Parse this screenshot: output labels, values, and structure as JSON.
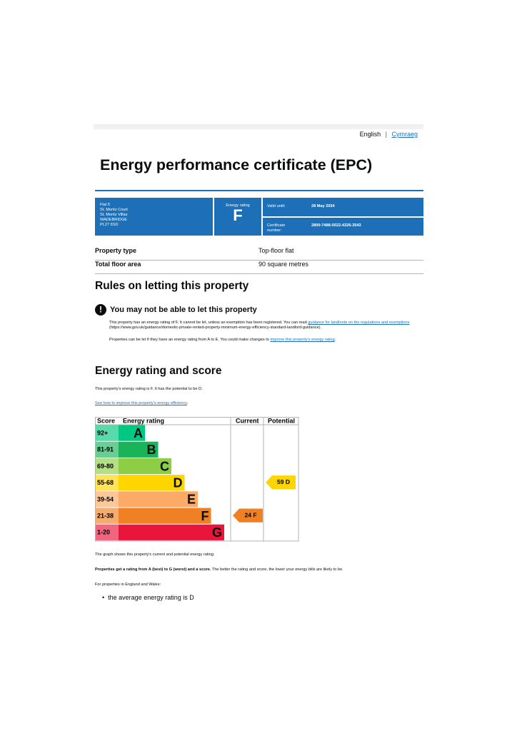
{
  "header": {
    "languages": [
      "English",
      "Cymraeg"
    ],
    "title": "Energy performance certificate (EPC)"
  },
  "summary": {
    "address": [
      "Flat 5",
      "St. Moritz Court",
      "St. Moritz Villas",
      "WADEBRIDGE",
      "PL27 6SD"
    ],
    "rating_label": "Energy rating",
    "rating": "F",
    "valid_until_label": "Valid until:",
    "valid_until": "28 May 2034",
    "certificate_label": "Certificate number:",
    "certificate_number": "2800-7488-0522-4326-3543"
  },
  "property": {
    "rows": [
      [
        "Property type",
        "Top-floor flat"
      ],
      [
        "Total floor area",
        "90 square metres"
      ]
    ]
  },
  "rules": {
    "heading": "Rules on letting this property",
    "warning": "You may not be able to let this property",
    "paragraph1": {
      "text": "This property has an energy rating of F. It cannot be let, unless an exemption has been registered. You can read ",
      "link": "guidance for landlords on the regulations and exemptions",
      "after": " (https://www.gov.uk/guidance/domestic-private-rented-property-minimum-energy-efficiency-standard-landlord-guidance)."
    },
    "paragraph2": {
      "text": "Properties can be let if they have an energy rating from A to E. You could make changes to ",
      "link": "improve this property's energy rating",
      "after": "."
    }
  },
  "rating": {
    "heading": "Energy rating and score",
    "intro": "This property's energy rating is F. It has the potential to be D.",
    "link": "See how to improve this property's energy efficiency",
    "link_after": ".",
    "chart": {
      "headers": [
        "Score",
        "Energy rating",
        "Current",
        "Potential"
      ],
      "bands": [
        {
          "score": "92+",
          "letter": "A",
          "color": "#00c781"
        },
        {
          "score": "81-91",
          "letter": "B",
          "color": "#19b459"
        },
        {
          "score": "69-80",
          "letter": "C",
          "color": "#8dce46"
        },
        {
          "score": "55-68",
          "letter": "D",
          "color": "#ffd500"
        },
        {
          "score": "39-54",
          "letter": "E",
          "color": "#fcaa65"
        },
        {
          "score": "21-38",
          "letter": "F",
          "color": "#ef8023"
        },
        {
          "score": "1-20",
          "letter": "G",
          "color": "#e9153b"
        }
      ],
      "current": {
        "score": 24,
        "band": "F",
        "color": "#ef8023"
      },
      "potential": {
        "score": 59,
        "band": "D",
        "color": "#ffd500"
      }
    },
    "note1": "The graph shows this property's current and potential energy rating.",
    "note2": {
      "bold": "Properties get a rating from A (best) to G (worst) and a score.",
      "text": " The better the rating and score, the lower your energy bills are likely to be."
    },
    "note3": "For properties in England and Wales:",
    "bullets": [
      "the average energy rating is D"
    ]
  }
}
